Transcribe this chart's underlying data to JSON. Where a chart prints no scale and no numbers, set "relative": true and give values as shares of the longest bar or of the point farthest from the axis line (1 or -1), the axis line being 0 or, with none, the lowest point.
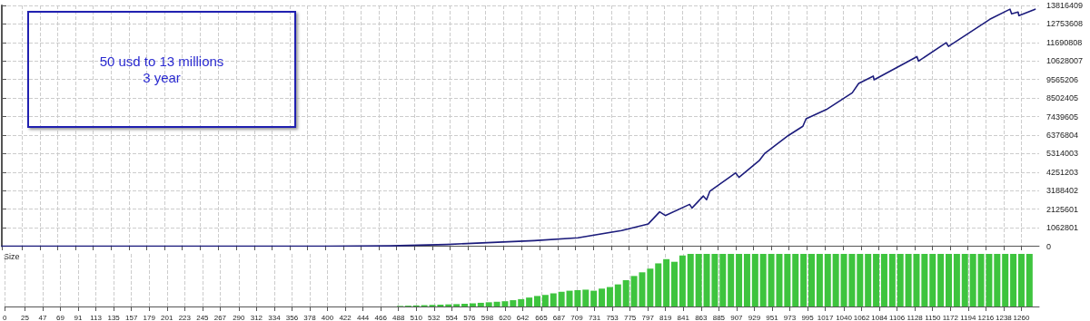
{
  "chart_data": [
    {
      "type": "line",
      "annotations": [
        "50 usd to 13 millions\n3 year"
      ],
      "xlim": [
        0,
        1282
      ],
      "xticks": [
        0,
        25,
        47,
        69,
        91,
        113,
        135,
        157,
        179,
        201,
        223,
        245,
        267,
        290,
        312,
        334,
        356,
        378,
        400,
        422,
        444,
        466,
        488,
        510,
        532,
        554,
        576,
        598,
        620,
        642,
        665,
        687,
        709,
        731,
        753,
        775,
        797,
        819,
        841,
        863,
        885,
        907,
        929,
        951,
        973,
        995,
        1017,
        1040,
        1062,
        1084,
        1106,
        1128,
        1150,
        1172,
        1194,
        1216,
        1238,
        1260
      ],
      "ylim": [
        0,
        13816409
      ],
      "yticks": [
        0,
        1062801,
        2125601,
        3188402,
        4251203,
        5314003,
        6376804,
        7439605,
        8502405,
        9565206,
        10628007,
        11690808,
        12753608,
        13816409
      ],
      "tick_labels": "y",
      "grid": true,
      "marker": "none",
      "line_style": "solid",
      "series": [
        {
          "color": "#1c1c7c",
          "x": [
            0,
            200,
            400,
            480,
            550,
            600,
            658,
            712,
            766,
            799,
            813,
            820,
            850,
            853,
            867,
            871,
            875,
            907,
            911,
            936,
            943,
            972,
            990,
            994,
            1019,
            1051,
            1059,
            1077,
            1078,
            1131,
            1133,
            1167,
            1170,
            1221,
            1246,
            1248,
            1256,
            1257,
            1277
          ],
          "values": [
            0,
            0,
            0,
            20000,
            100000,
            200000,
            320000,
            480000,
            900000,
            1280000,
            1970000,
            1760000,
            2400000,
            2190000,
            2880000,
            2670000,
            3150000,
            4210000,
            3950000,
            4910000,
            5330000,
            6350000,
            6880000,
            7310000,
            7840000,
            8800000,
            9340000,
            9760000,
            9550000,
            10880000,
            10620000,
            11680000,
            11470000,
            13020000,
            13600000,
            13340000,
            13440000,
            13230000,
            13600000
          ]
        }
      ]
    },
    {
      "type": "bar",
      "relative": true,
      "ylabel": "Size",
      "xlim": [
        0,
        1282
      ],
      "xticks": [
        0,
        25,
        47,
        69,
        91,
        113,
        135,
        157,
        179,
        201,
        223,
        245,
        267,
        290,
        312,
        334,
        356,
        378,
        400,
        422,
        444,
        466,
        488,
        510,
        532,
        554,
        576,
        598,
        620,
        642,
        665,
        687,
        709,
        731,
        753,
        775,
        797,
        819,
        841,
        863,
        885,
        907,
        929,
        951,
        973,
        995,
        1017,
        1040,
        1062,
        1084,
        1106,
        1128,
        1150,
        1172,
        1194,
        1216,
        1238,
        1260
      ],
      "tick_labels": "x",
      "grid": "x",
      "x": [
        490,
        500,
        510,
        520,
        530,
        540,
        550,
        560,
        570,
        580,
        590,
        600,
        610,
        620,
        630,
        640,
        650,
        660,
        670,
        680,
        690,
        700,
        710,
        720,
        730,
        740,
        750,
        760,
        770,
        780,
        790,
        800,
        810,
        820,
        830,
        840,
        850,
        860,
        870,
        880,
        890,
        900,
        910,
        920,
        930,
        940,
        950,
        960,
        970,
        980,
        990,
        1000,
        1010,
        1020,
        1030,
        1040,
        1050,
        1060,
        1070,
        1080,
        1090,
        1100,
        1110,
        1120,
        1130,
        1140,
        1150,
        1160,
        1170,
        1180,
        1190,
        1200,
        1210,
        1220,
        1230,
        1240,
        1250,
        1260,
        1270
      ],
      "series": [
        {
          "color": "#3ec43e",
          "values": [
            0.01,
            0.015,
            0.02,
            0.025,
            0.03,
            0.035,
            0.04,
            0.045,
            0.05,
            0.06,
            0.07,
            0.08,
            0.09,
            0.1,
            0.12,
            0.14,
            0.17,
            0.2,
            0.22,
            0.25,
            0.28,
            0.3,
            0.31,
            0.32,
            0.3,
            0.34,
            0.37,
            0.42,
            0.5,
            0.58,
            0.65,
            0.72,
            0.82,
            0.9,
            0.85,
            0.97,
            1,
            1,
            1,
            1,
            1,
            1,
            1,
            1,
            1,
            1,
            1,
            1,
            1,
            1,
            1,
            1,
            1,
            1,
            1,
            1,
            1,
            1,
            1,
            1,
            1,
            1,
            1,
            1,
            1,
            1,
            1,
            1,
            1,
            1,
            1,
            1,
            1,
            1,
            1,
            1,
            1,
            1,
            1
          ]
        }
      ]
    }
  ]
}
